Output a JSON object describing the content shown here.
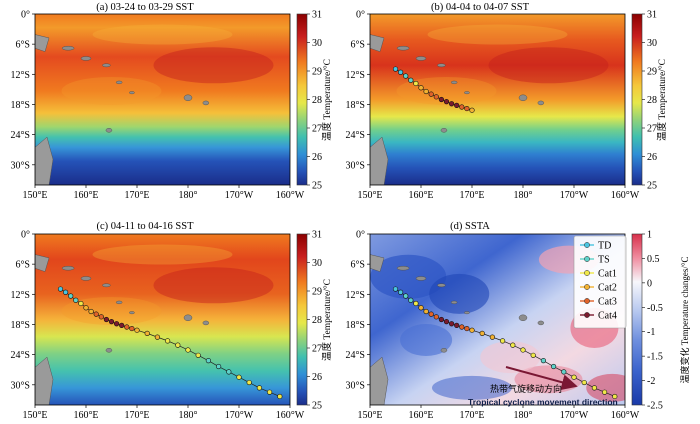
{
  "colors": {
    "warm_dark": "#8b0000",
    "warm": "#e34a1c",
    "mid_warm": "#f5a62a",
    "neutral": "#f3e94a",
    "cool": "#58c8a8",
    "cool_dark": "#1f3f9a",
    "land": "#9a9a9a",
    "anom_red": "#e8506a",
    "anom_blue": "#1e4fbf",
    "arrow": "#7a1733"
  },
  "axes": {
    "x_ticks": [
      "150°E",
      "160°E",
      "170°E",
      "180°",
      "170°W",
      "160°W"
    ],
    "y_ticks": [
      "0°",
      "6°S",
      "12°S",
      "18°S",
      "24°S",
      "30°S"
    ]
  },
  "colorbars": {
    "sst": {
      "ticks": [
        "31",
        "30",
        "29",
        "28",
        "27",
        "26",
        "25"
      ],
      "label": "温度 Temperature/°C",
      "range": [
        25,
        31
      ]
    },
    "ssta": {
      "ticks": [
        "1",
        "0.5",
        "0",
        "-0.5",
        "-1",
        "-1.5",
        "-2",
        "-2.5"
      ],
      "label": "温度变化 Temperature changes/°C",
      "range": [
        -2.5,
        1
      ]
    }
  },
  "legend": {
    "items": [
      {
        "label": "TD",
        "color": "#4bc4e0"
      },
      {
        "label": "TS",
        "color": "#5fd2c9"
      },
      {
        "label": "Cat1",
        "color": "#f0e84a"
      },
      {
        "label": "Cat2",
        "color": "#f2b233"
      },
      {
        "label": "Cat3",
        "color": "#e0632a"
      },
      {
        "label": "Cat4",
        "color": "#7a1a2e"
      }
    ]
  },
  "chart_data": [
    {
      "type": "heatmap",
      "title": "(a) 03-24 to 03-29 SST",
      "xlim": [
        150,
        200
      ],
      "ylim": [
        -32,
        0
      ],
      "value_range": [
        25,
        31
      ],
      "track": []
    },
    {
      "type": "heatmap",
      "title": "(b) 04-04 to 04-07 SST",
      "xlim": [
        150,
        200
      ],
      "ylim": [
        -32,
        0
      ],
      "value_range": [
        25,
        31
      ],
      "track": [
        {
          "lon": 155.0,
          "lat": -10.3,
          "cat": "TD"
        },
        {
          "lon": 156.0,
          "lat": -10.9,
          "cat": "TD"
        },
        {
          "lon": 157.0,
          "lat": -11.6,
          "cat": "TS"
        },
        {
          "lon": 158.0,
          "lat": -12.4,
          "cat": "TS"
        },
        {
          "lon": 159.0,
          "lat": -13.0,
          "cat": "Cat1"
        },
        {
          "lon": 160.0,
          "lat": -13.8,
          "cat": "Cat2"
        },
        {
          "lon": 161.0,
          "lat": -14.5,
          "cat": "Cat2"
        },
        {
          "lon": 162.0,
          "lat": -15.0,
          "cat": "Cat3"
        },
        {
          "lon": 163.0,
          "lat": -15.5,
          "cat": "Cat3"
        },
        {
          "lon": 164.0,
          "lat": -16.0,
          "cat": "Cat4"
        },
        {
          "lon": 165.0,
          "lat": -16.4,
          "cat": "Cat4"
        },
        {
          "lon": 166.0,
          "lat": -16.8,
          "cat": "Cat4"
        },
        {
          "lon": 167.0,
          "lat": -17.1,
          "cat": "Cat4"
        },
        {
          "lon": 168.0,
          "lat": -17.4,
          "cat": "Cat3"
        },
        {
          "lon": 169.0,
          "lat": -17.7,
          "cat": "Cat3"
        },
        {
          "lon": 170.0,
          "lat": -18.0,
          "cat": "Cat2"
        }
      ]
    },
    {
      "type": "heatmap",
      "title": "(c) 04-11 to 04-16 SST",
      "xlim": [
        150,
        200
      ],
      "ylim": [
        -32,
        0
      ],
      "value_range": [
        25,
        31
      ],
      "track": [
        {
          "lon": 155.0,
          "lat": -10.3,
          "cat": "TD"
        },
        {
          "lon": 156.0,
          "lat": -10.9,
          "cat": "TD"
        },
        {
          "lon": 157.0,
          "lat": -11.6,
          "cat": "TS"
        },
        {
          "lon": 158.0,
          "lat": -12.4,
          "cat": "TS"
        },
        {
          "lon": 159.0,
          "lat": -13.0,
          "cat": "Cat1"
        },
        {
          "lon": 160.0,
          "lat": -13.8,
          "cat": "Cat2"
        },
        {
          "lon": 161.0,
          "lat": -14.5,
          "cat": "Cat2"
        },
        {
          "lon": 162.0,
          "lat": -15.0,
          "cat": "Cat3"
        },
        {
          "lon": 163.0,
          "lat": -15.5,
          "cat": "Cat3"
        },
        {
          "lon": 164.0,
          "lat": -16.0,
          "cat": "Cat4"
        },
        {
          "lon": 165.0,
          "lat": -16.4,
          "cat": "Cat4"
        },
        {
          "lon": 166.0,
          "lat": -16.8,
          "cat": "Cat4"
        },
        {
          "lon": 167.0,
          "lat": -17.1,
          "cat": "Cat4"
        },
        {
          "lon": 168.0,
          "lat": -17.4,
          "cat": "Cat3"
        },
        {
          "lon": 169.0,
          "lat": -17.7,
          "cat": "Cat3"
        },
        {
          "lon": 170.0,
          "lat": -18.0,
          "cat": "Cat2"
        },
        {
          "lon": 172.0,
          "lat": -18.6,
          "cat": "Cat2"
        },
        {
          "lon": 174.0,
          "lat": -19.3,
          "cat": "Cat2"
        },
        {
          "lon": 176.0,
          "lat": -20.0,
          "cat": "Cat1"
        },
        {
          "lon": 178.0,
          "lat": -20.8,
          "cat": "Cat1"
        },
        {
          "lon": 180.0,
          "lat": -21.7,
          "cat": "Cat1"
        },
        {
          "lon": 182.0,
          "lat": -22.7,
          "cat": "Cat1"
        },
        {
          "lon": 184.0,
          "lat": -23.7,
          "cat": "TS"
        },
        {
          "lon": 186.0,
          "lat": -24.8,
          "cat": "TS"
        },
        {
          "lon": 188.0,
          "lat": -25.8,
          "cat": "TS"
        },
        {
          "lon": 190.0,
          "lat": -26.8,
          "cat": "Cat1"
        },
        {
          "lon": 192.0,
          "lat": -27.8,
          "cat": "Cat1"
        },
        {
          "lon": 194.0,
          "lat": -28.8,
          "cat": "Cat1"
        },
        {
          "lon": 196.0,
          "lat": -29.6,
          "cat": "Cat1"
        },
        {
          "lon": 198.0,
          "lat": -30.4,
          "cat": "Cat1"
        }
      ]
    },
    {
      "type": "heatmap",
      "title": "(d) SSTA",
      "xlim": [
        150,
        200
      ],
      "ylim": [
        -32,
        0
      ],
      "value_range": [
        -2.5,
        1
      ],
      "annotation": {
        "text_cn": "热带气旋移动方向",
        "text_en": "Tropical cyclone movement direction"
      },
      "track": [
        {
          "lon": 155.0,
          "lat": -10.3,
          "cat": "TD"
        },
        {
          "lon": 156.0,
          "lat": -10.9,
          "cat": "TD"
        },
        {
          "lon": 157.0,
          "lat": -11.6,
          "cat": "TS"
        },
        {
          "lon": 158.0,
          "lat": -12.4,
          "cat": "TS"
        },
        {
          "lon": 159.0,
          "lat": -13.0,
          "cat": "Cat1"
        },
        {
          "lon": 160.0,
          "lat": -13.8,
          "cat": "Cat2"
        },
        {
          "lon": 161.0,
          "lat": -14.5,
          "cat": "Cat2"
        },
        {
          "lon": 162.0,
          "lat": -15.0,
          "cat": "Cat3"
        },
        {
          "lon": 163.0,
          "lat": -15.5,
          "cat": "Cat3"
        },
        {
          "lon": 164.0,
          "lat": -16.0,
          "cat": "Cat4"
        },
        {
          "lon": 165.0,
          "lat": -16.4,
          "cat": "Cat4"
        },
        {
          "lon": 166.0,
          "lat": -16.8,
          "cat": "Cat4"
        },
        {
          "lon": 167.0,
          "lat": -17.1,
          "cat": "Cat4"
        },
        {
          "lon": 168.0,
          "lat": -17.4,
          "cat": "Cat3"
        },
        {
          "lon": 169.0,
          "lat": -17.7,
          "cat": "Cat3"
        },
        {
          "lon": 170.0,
          "lat": -18.0,
          "cat": "Cat2"
        },
        {
          "lon": 172.0,
          "lat": -18.6,
          "cat": "Cat2"
        },
        {
          "lon": 174.0,
          "lat": -19.3,
          "cat": "Cat2"
        },
        {
          "lon": 176.0,
          "lat": -20.0,
          "cat": "Cat1"
        },
        {
          "lon": 178.0,
          "lat": -20.8,
          "cat": "Cat1"
        },
        {
          "lon": 180.0,
          "lat": -21.7,
          "cat": "Cat1"
        },
        {
          "lon": 182.0,
          "lat": -22.7,
          "cat": "Cat1"
        },
        {
          "lon": 184.0,
          "lat": -23.7,
          "cat": "TS"
        },
        {
          "lon": 186.0,
          "lat": -24.8,
          "cat": "TS"
        },
        {
          "lon": 188.0,
          "lat": -25.8,
          "cat": "TS"
        },
        {
          "lon": 190.0,
          "lat": -26.8,
          "cat": "Cat1"
        },
        {
          "lon": 192.0,
          "lat": -27.8,
          "cat": "Cat1"
        },
        {
          "lon": 194.0,
          "lat": -28.8,
          "cat": "Cat1"
        },
        {
          "lon": 196.0,
          "lat": -29.6,
          "cat": "Cat1"
        },
        {
          "lon": 198.0,
          "lat": -30.4,
          "cat": "Cat1"
        }
      ]
    }
  ]
}
